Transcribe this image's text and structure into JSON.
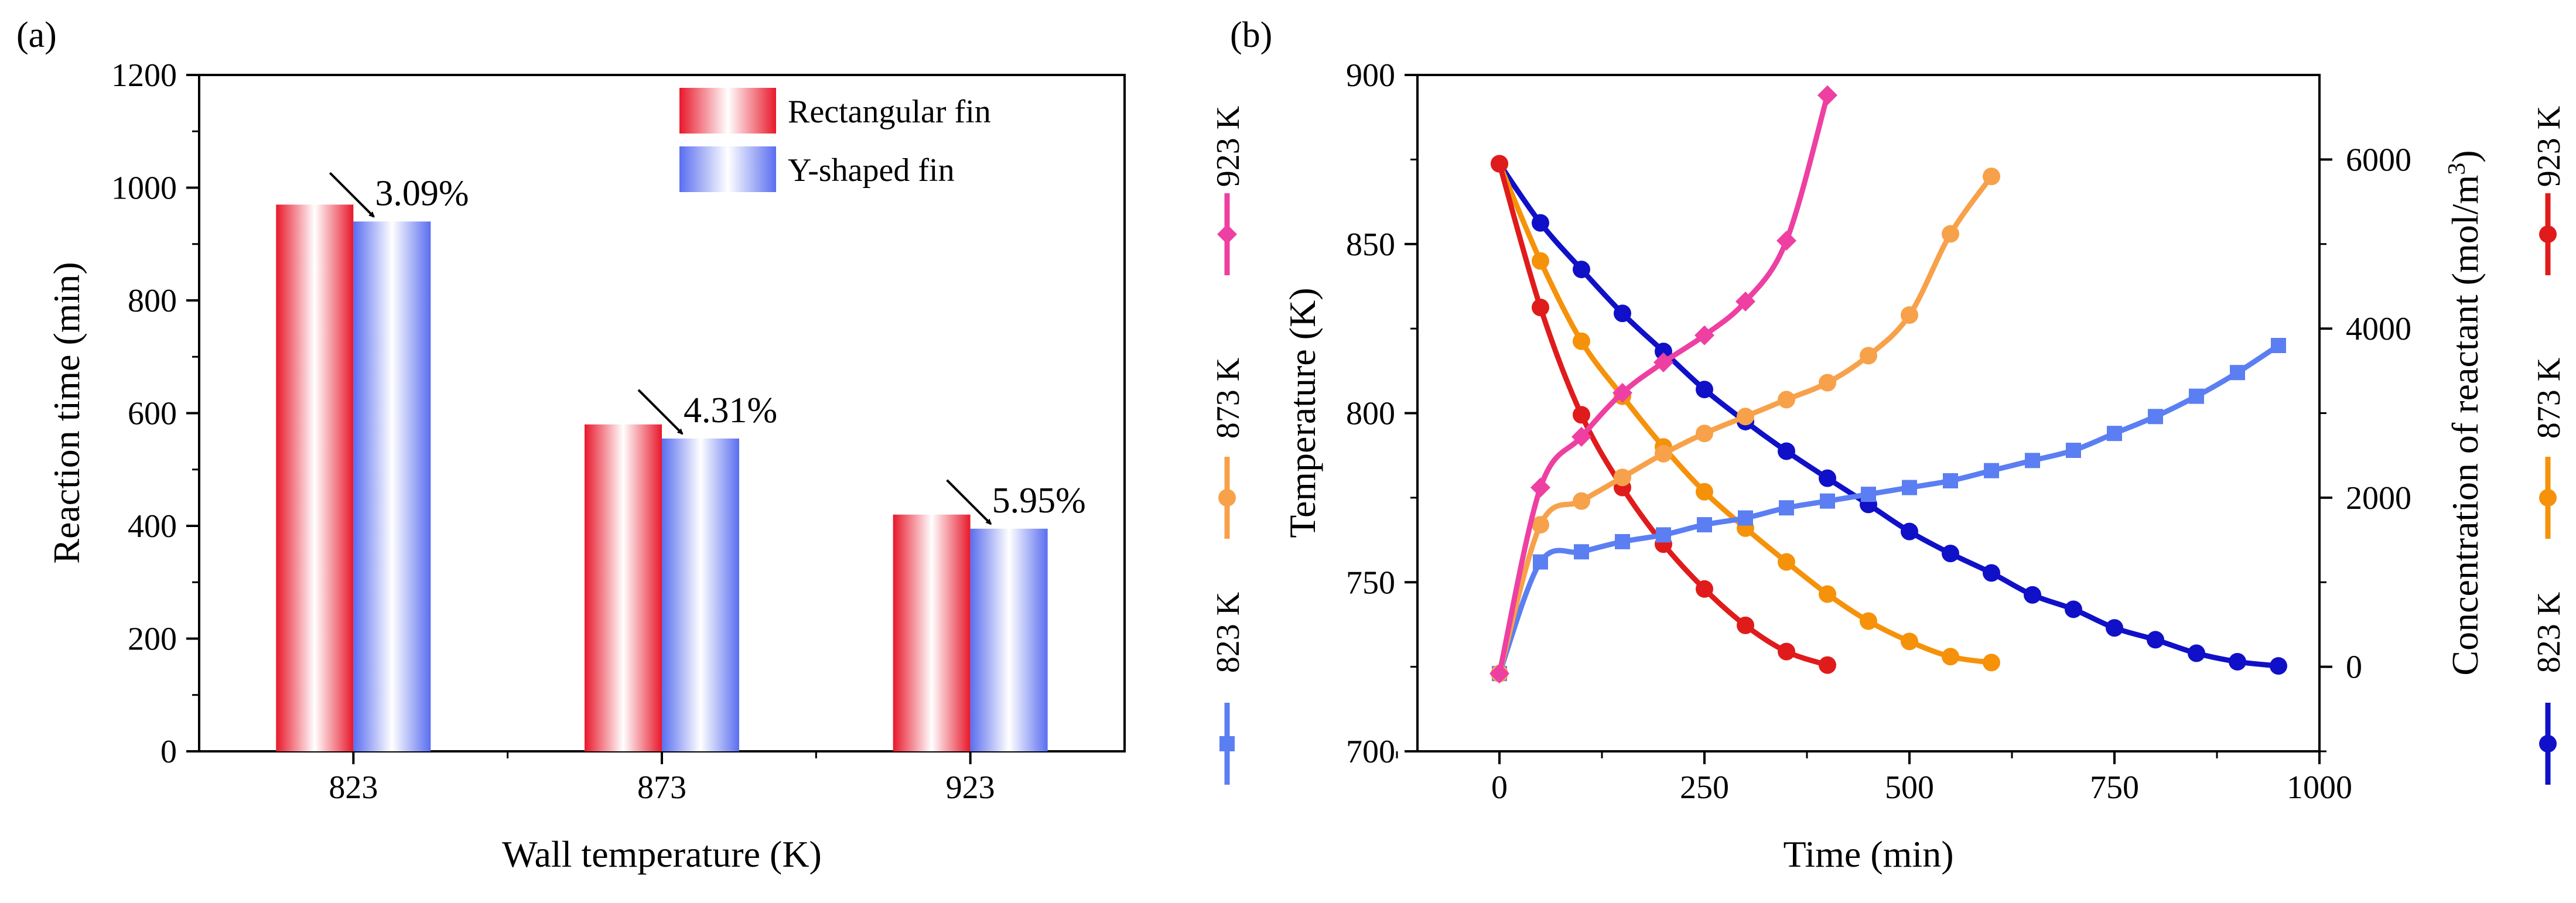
{
  "chart_data": [
    {
      "panel": "(a)",
      "type": "bar",
      "xlabel": "Wall temperature (K)",
      "ylabel": "Reaction time (min)",
      "ylim": [
        0,
        1200
      ],
      "yticks": [
        "0",
        "200",
        "400",
        "600",
        "800",
        "1000",
        "1200"
      ],
      "categories": [
        "823",
        "873",
        "923"
      ],
      "series": [
        {
          "name": "Rectangular fin",
          "values": [
            970,
            580,
            420
          ],
          "color": "#e8182b"
        },
        {
          "name": "Y-shaped fin",
          "values": [
            940,
            555,
            395
          ],
          "color": "#5a6ef0"
        }
      ],
      "annotations": [
        "3.09%",
        "4.31%",
        "5.95%"
      ],
      "legend_position": "top-right"
    },
    {
      "panel": "(b)",
      "type": "line",
      "xlabel": "Time (min)",
      "ylabel": "Temperature (K)",
      "ylabel_right": "Concentration of reactant (mol/m",
      "ylabel_right_sup": "3",
      "ylabel_right_close": ")",
      "xlim": [
        -100,
        1000
      ],
      "ylim": [
        700,
        900
      ],
      "ylim_right": [
        -1000,
        7000
      ],
      "xticks": [
        "0",
        "250",
        "500",
        "750",
        "1000"
      ],
      "yticks": [
        "700",
        "750",
        "800",
        "850",
        "900"
      ],
      "yticks_right": [
        "0",
        "2000",
        "4000",
        "6000"
      ],
      "temperature_series": [
        {
          "name": "923 K",
          "color": "#ee3fa2",
          "marker": "diamond",
          "x": [
            0,
            50,
            100,
            150,
            200,
            250,
            300,
            350,
            400
          ],
          "y": [
            723,
            778,
            793,
            806,
            815,
            823,
            833,
            851,
            894
          ]
        },
        {
          "name": "873 K",
          "color": "#f7a14a",
          "marker": "circle",
          "x": [
            0,
            50,
            100,
            150,
            200,
            250,
            300,
            350,
            400,
            450,
            500,
            550,
            600
          ],
          "y": [
            723,
            767,
            774,
            781,
            788,
            794,
            799,
            804,
            809,
            817,
            829,
            853,
            870
          ]
        },
        {
          "name": "823 K",
          "color": "#5b7ff2",
          "marker": "square",
          "x": [
            0,
            50,
            100,
            150,
            200,
            250,
            300,
            350,
            400,
            450,
            500,
            550,
            600,
            650,
            700,
            750,
            800,
            850,
            900,
            950
          ],
          "y": [
            723,
            756,
            759,
            762,
            764,
            767,
            769,
            772,
            774,
            776,
            778,
            780,
            783,
            786,
            789,
            794,
            799,
            805,
            812,
            820
          ]
        }
      ],
      "concentration_series": [
        {
          "name": "923 K",
          "color": "#e01b1b",
          "marker": "circle",
          "x": [
            0,
            50,
            100,
            150,
            200,
            250,
            300,
            350,
            400
          ],
          "y": [
            5950,
            4250,
            2980,
            2120,
            1450,
            920,
            490,
            180,
            20
          ]
        },
        {
          "name": "873 K",
          "color": "#f5920a",
          "marker": "circle",
          "x": [
            0,
            50,
            100,
            150,
            200,
            250,
            300,
            350,
            400,
            450,
            500,
            550,
            600
          ],
          "y": [
            5950,
            4800,
            3850,
            3200,
            2600,
            2070,
            1640,
            1240,
            860,
            540,
            300,
            120,
            50
          ]
        },
        {
          "name": "823 K",
          "color": "#1010c8",
          "marker": "circle",
          "x": [
            0,
            50,
            100,
            150,
            200,
            250,
            300,
            350,
            400,
            450,
            500,
            550,
            600,
            650,
            700,
            750,
            800,
            850,
            900,
            950
          ],
          "y": [
            5950,
            5250,
            4700,
            4180,
            3730,
            3280,
            2900,
            2550,
            2230,
            1920,
            1600,
            1340,
            1110,
            850,
            680,
            460,
            320,
            160,
            60,
            10
          ]
        }
      ],
      "legend_left": [
        "923 K",
        "873 K",
        "823 K"
      ],
      "legend_right": [
        "923 K",
        "873 K",
        "823 K"
      ]
    }
  ]
}
